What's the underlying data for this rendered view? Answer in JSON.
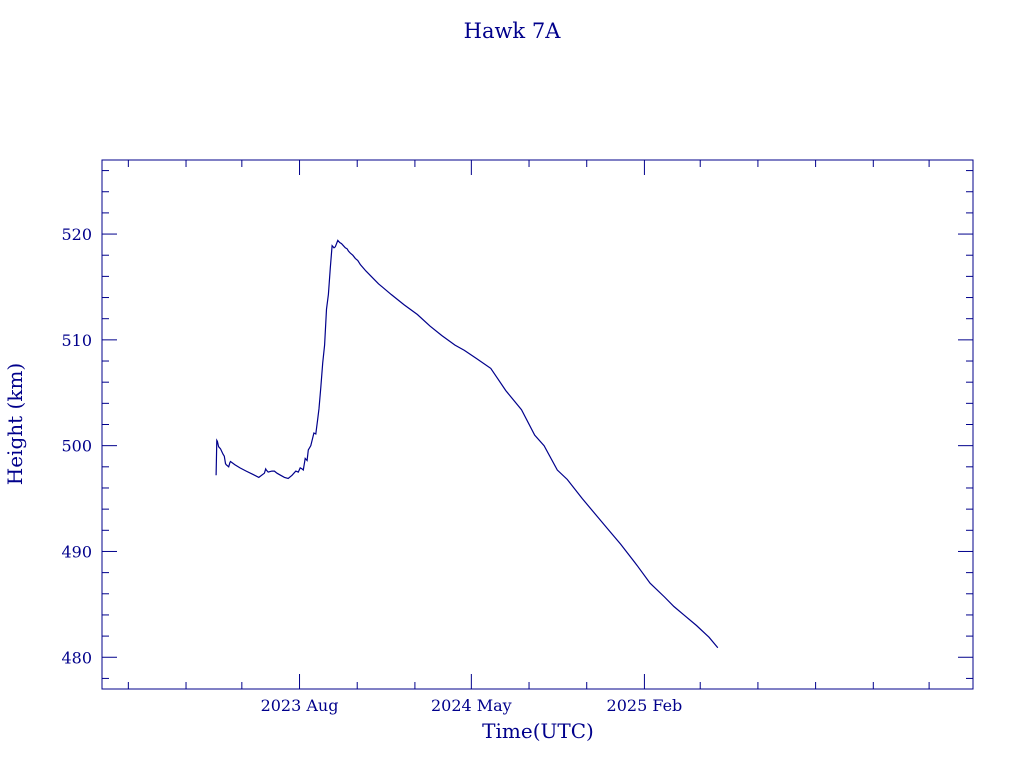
{
  "chart_data": {
    "type": "line",
    "title": "Hawk 7A",
    "xlabel": "Time(UTC)",
    "ylabel": "Height (km)",
    "ylim": [
      477,
      527
    ],
    "xlim": [
      "2022-09-20",
      "2026-07-10"
    ],
    "x_ticks": [
      {
        "date": "2023-08-01",
        "label": "2023 Aug"
      },
      {
        "date": "2024-05-01",
        "label": "2024 May"
      },
      {
        "date": "2025-02-01",
        "label": "2025 Feb"
      }
    ],
    "y_ticks": [
      480,
      490,
      500,
      510,
      520
    ],
    "color": "#00008b",
    "series": [
      {
        "x": [
          "2023-03-21",
          "2023-03-22",
          "2023-03-23",
          "2023-03-25",
          "2023-03-28",
          "2023-04-01",
          "2023-04-03",
          "2023-04-05",
          "2023-04-06",
          "2023-04-10",
          "2023-04-12",
          "2023-04-13",
          "2023-04-20",
          "2023-04-28",
          "2023-05-08",
          "2023-05-18",
          "2023-05-28",
          "2023-06-06",
          "2023-06-08",
          "2023-06-09",
          "2023-06-12",
          "2023-06-18",
          "2023-06-22",
          "2023-06-26",
          "2023-07-02",
          "2023-07-08",
          "2023-07-14",
          "2023-07-20",
          "2023-07-26",
          "2023-07-30",
          "2023-08-02",
          "2023-08-05",
          "2023-08-07",
          "2023-08-10",
          "2023-08-13",
          "2023-08-15",
          "2023-08-19",
          "2023-08-24",
          "2023-08-27",
          "2023-08-30",
          "2023-09-01",
          "2023-09-04",
          "2023-09-07",
          "2023-09-10",
          "2023-09-13",
          "2023-09-16",
          "2023-09-19",
          "2023-09-22",
          "2023-09-25",
          "2023-09-27",
          "2023-10-01",
          "2023-10-04",
          "2023-10-07",
          "2023-10-10",
          "2023-10-13",
          "2023-10-16",
          "2023-10-18",
          "2023-10-21",
          "2023-10-23",
          "2023-10-25",
          "2023-10-29",
          "2023-11-02",
          "2023-11-06",
          "2023-11-15",
          "2023-12-05",
          "2023-12-25",
          "2024-01-15",
          "2024-02-05",
          "2024-02-25",
          "2024-03-15",
          "2024-04-05",
          "2024-04-20",
          "2024-05-10",
          "2024-06-01",
          "2024-06-25",
          "2024-07-20",
          "2024-08-10",
          "2024-08-25",
          "2024-09-15",
          "2024-10-01",
          "2024-10-25",
          "2024-11-15",
          "2024-12-05",
          "2024-12-25",
          "2025-01-20",
          "2025-02-10",
          "2025-03-05",
          "2025-03-20",
          "2025-04-05",
          "2025-04-25",
          "2025-05-15",
          "2025-05-29"
        ],
        "y": [
          497.2,
          500.5,
          500.4,
          499.9,
          499.7,
          499.2,
          499.0,
          498.3,
          498.2,
          498.0,
          498.4,
          498.5,
          498.2,
          497.9,
          497.6,
          497.3,
          497.0,
          497.4,
          497.8,
          497.7,
          497.5,
          497.6,
          497.6,
          497.4,
          497.2,
          497.0,
          496.9,
          497.2,
          497.6,
          497.5,
          497.9,
          497.8,
          497.7,
          498.8,
          498.6,
          499.6,
          500.0,
          501.2,
          501.1,
          502.5,
          503.5,
          505.5,
          507.8,
          509.5,
          512.9,
          514.3,
          516.8,
          518.9,
          518.7,
          518.8,
          519.4,
          519.2,
          519.1,
          518.9,
          518.7,
          518.6,
          518.4,
          518.2,
          518.1,
          518.0,
          517.7,
          517.5,
          517.1,
          516.5,
          515.3,
          514.3,
          513.3,
          512.4,
          511.3,
          510.4,
          509.5,
          509.0,
          508.2,
          507.3,
          505.2,
          503.4,
          501.0,
          500.0,
          497.7,
          496.8,
          495.0,
          493.5,
          492.1,
          490.7,
          488.7,
          487.0,
          485.7,
          484.8,
          484.0,
          483.0,
          481.9,
          480.9
        ]
      }
    ]
  }
}
